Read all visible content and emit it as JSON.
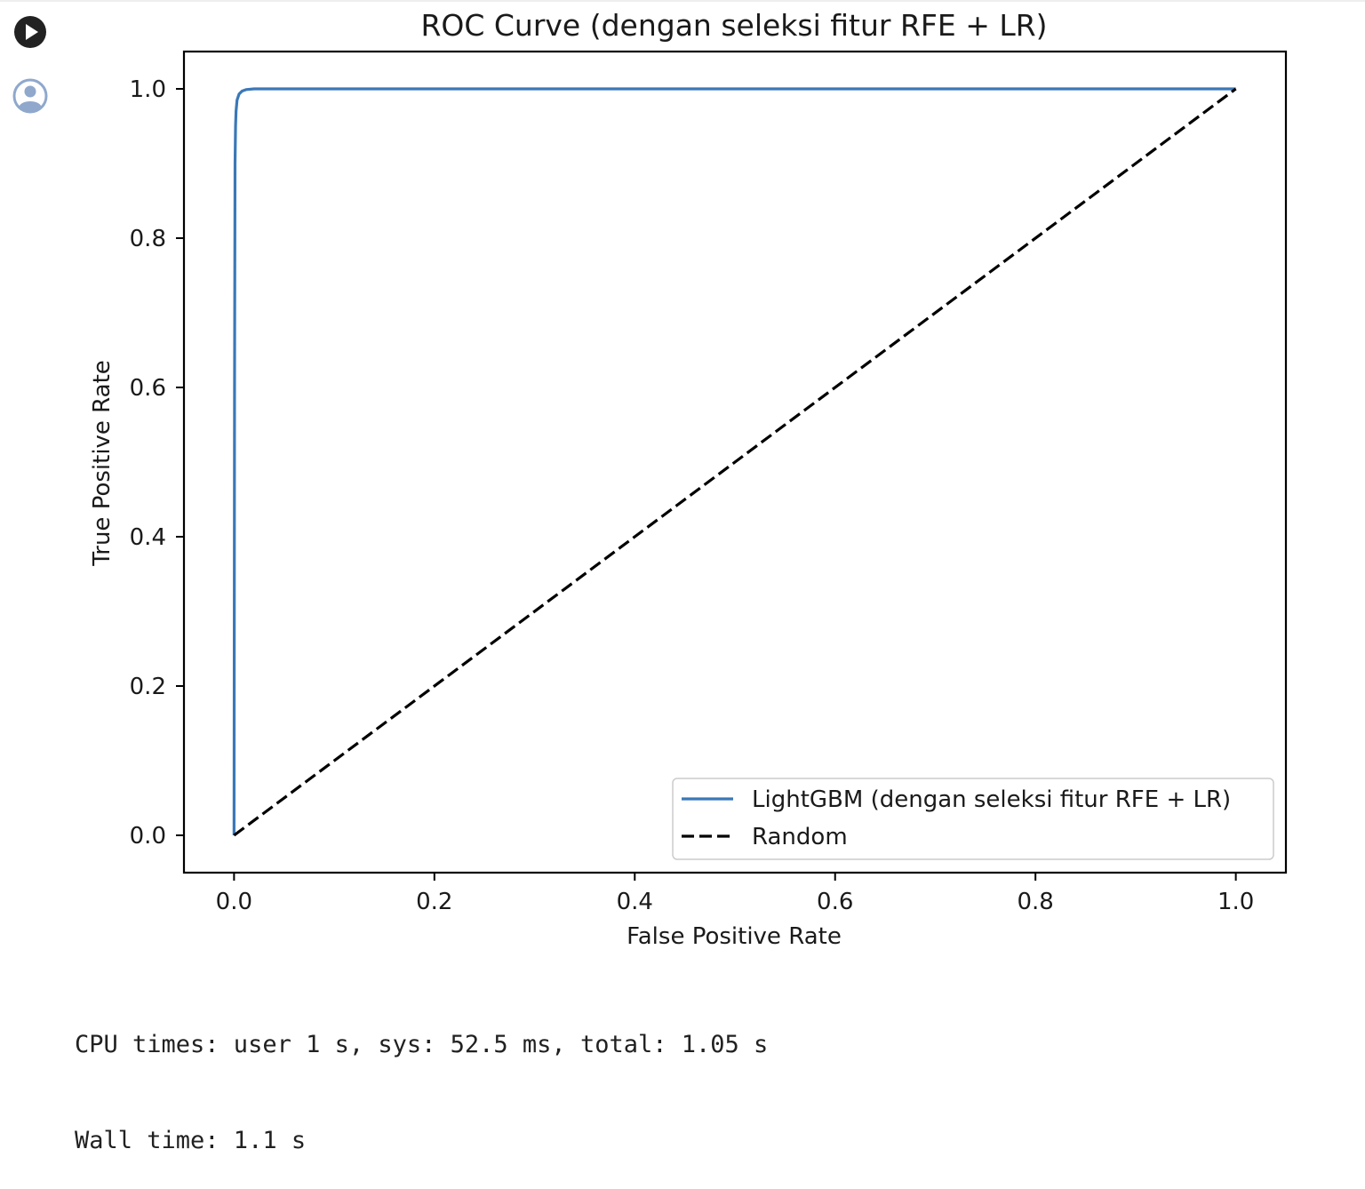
{
  "cell": {
    "run_icon": "play-circle-icon",
    "output_icon": "user-circle-icon",
    "output_lines": [
      "CPU times: user 1 s, sys: 52.5 ms, total: 1.05 s",
      "Wall time: 1.1 s"
    ]
  },
  "chart_data": {
    "type": "line",
    "title": "ROC Curve (dengan seleksi fitur RFE + LR)",
    "xlabel": "False Positive Rate",
    "ylabel": "True Positive Rate",
    "xlim": [
      -0.05,
      1.05
    ],
    "ylim": [
      -0.05,
      1.05
    ],
    "xticks": [
      0.0,
      0.2,
      0.4,
      0.6,
      0.8,
      1.0
    ],
    "yticks": [
      0.0,
      0.2,
      0.4,
      0.6,
      0.8,
      1.0
    ],
    "xtick_labels": [
      "0.0",
      "0.2",
      "0.4",
      "0.6",
      "0.8",
      "1.0"
    ],
    "ytick_labels": [
      "0.0",
      "0.2",
      "0.4",
      "0.6",
      "0.8",
      "1.0"
    ],
    "grid": false,
    "legend_position": "lower-right",
    "series": [
      {
        "name": "LightGBM (dengan seleksi fitur RFE + LR)",
        "color": "#3a78b8",
        "style": "solid",
        "x": [
          0.0,
          0.0005,
          0.001,
          0.0015,
          0.002,
          0.003,
          0.005,
          0.008,
          0.012,
          0.02,
          0.05,
          0.2,
          0.5,
          1.0
        ],
        "y": [
          0.0,
          0.6,
          0.9,
          0.95,
          0.97,
          0.985,
          0.993,
          0.997,
          0.999,
          1.0,
          1.0,
          1.0,
          1.0,
          1.0
        ]
      },
      {
        "name": "Random",
        "color": "#000000",
        "style": "dashed",
        "x": [
          0.0,
          1.0
        ],
        "y": [
          0.0,
          1.0
        ]
      }
    ]
  }
}
